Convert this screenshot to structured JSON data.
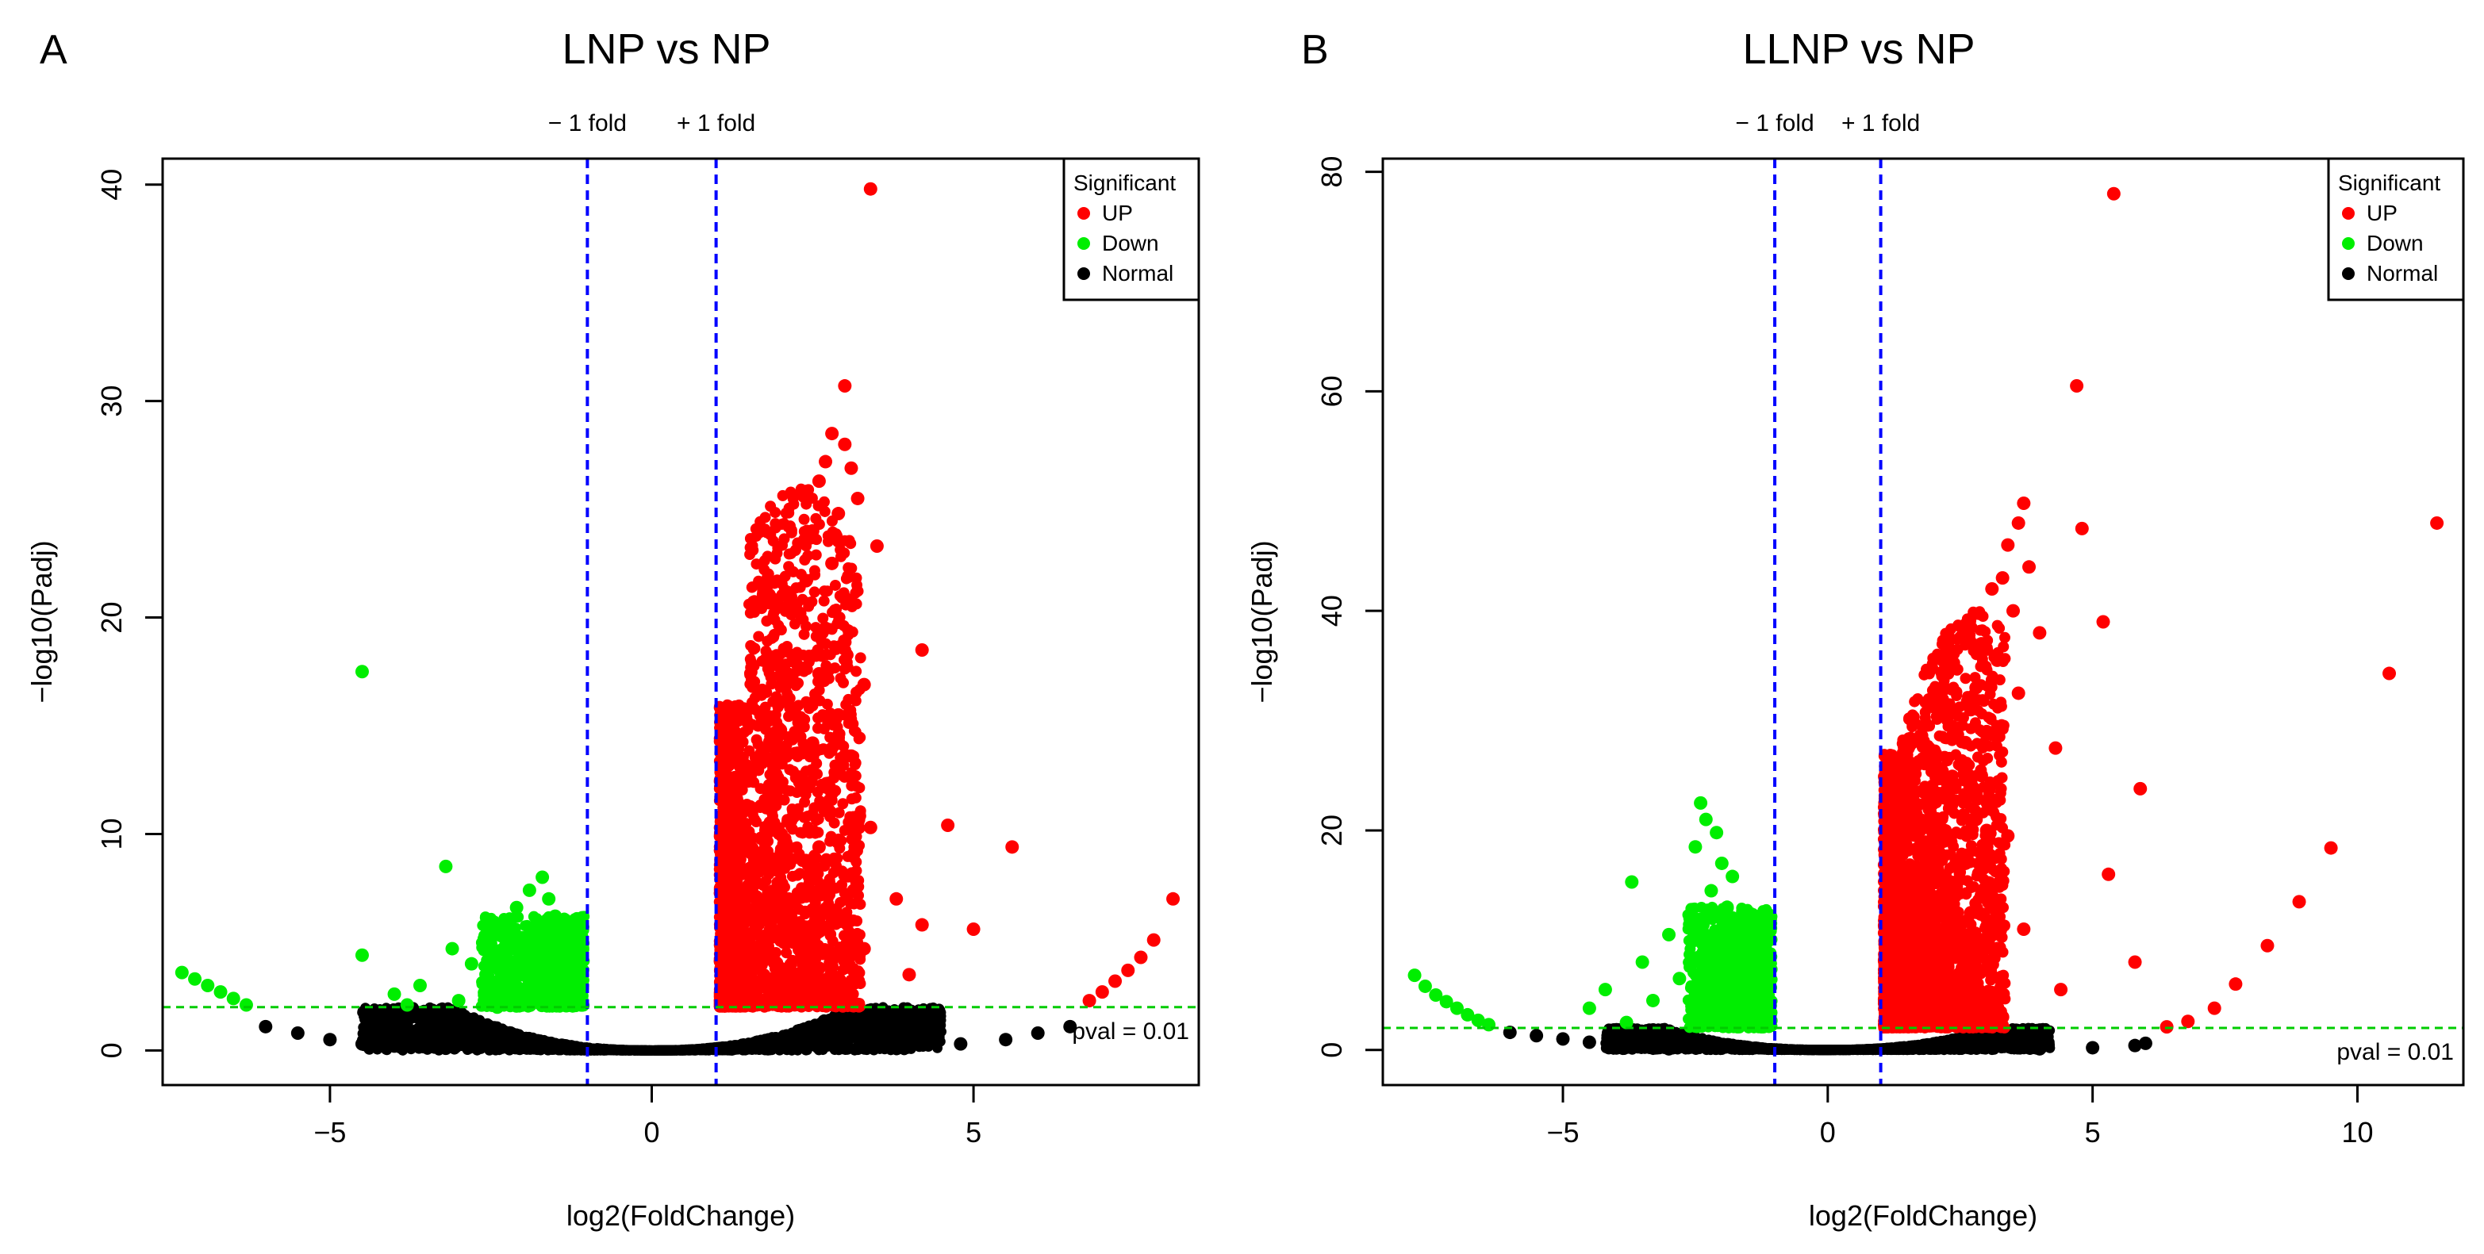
{
  "panels": [
    {
      "letter": "A",
      "legend_title": "Significant",
      "vline_labels": [
        "− 1 fold",
        "+ 1 fold"
      ],
      "hline_label": "pval = 0.01"
    },
    {
      "letter": "B",
      "legend_title": "Significant",
      "vline_labels": [
        "− 1 fold",
        "+ 1 fold"
      ],
      "hline_label": "pval = 0.01"
    }
  ],
  "colors": {
    "up": "#ff0000",
    "down": "#00ee00",
    "normal": "#000000",
    "vline": "#0000ff",
    "hline": "#00cc00"
  },
  "chart_data": [
    {
      "type": "scatter",
      "title": "LNP vs NP",
      "xlabel": "log2(FoldChange)",
      "ylabel": "−log10(Padj)",
      "xlim": [
        -7.6,
        8.5
      ],
      "ylim": [
        -1.6,
        41.2
      ],
      "xticks": [
        -5,
        0,
        5
      ],
      "yticks": [
        0,
        10,
        20,
        30,
        40
      ],
      "xtick_labels": [
        "−5",
        "0",
        "5"
      ],
      "ytick_labels": [
        "0",
        "10",
        "20",
        "30",
        "40"
      ],
      "fold_lines": [
        -1,
        1
      ],
      "pval_line": 2,
      "legend": {
        "position": "top-right",
        "entries": [
          "UP",
          "Down",
          "Normal"
        ]
      },
      "series": [
        {
          "name": "UP",
          "color": "#ff0000",
          "points": [
            [
              3.4,
              39.8
            ],
            [
              3.0,
              30.7
            ],
            [
              2.8,
              28.5
            ],
            [
              3.0,
              28.0
            ],
            [
              2.7,
              27.2
            ],
            [
              3.1,
              26.9
            ],
            [
              2.6,
              26.3
            ],
            [
              3.2,
              25.5
            ],
            [
              2.9,
              24.8
            ],
            [
              2.5,
              24.0
            ],
            [
              3.5,
              23.3
            ],
            [
              2.8,
              22.5
            ],
            [
              2.4,
              21.7
            ],
            [
              3.0,
              20.9
            ],
            [
              2.3,
              20.2
            ],
            [
              2.7,
              19.5
            ],
            [
              4.2,
              18.5
            ],
            [
              2.2,
              18.0
            ],
            [
              2.6,
              17.4
            ],
            [
              3.3,
              16.9
            ],
            [
              2.1,
              16.2
            ],
            [
              2.9,
              15.5
            ],
            [
              2.0,
              14.8
            ],
            [
              2.5,
              14.2
            ],
            [
              3.1,
              13.6
            ],
            [
              1.9,
              13.0
            ],
            [
              2.3,
              12.4
            ],
            [
              2.8,
              11.9
            ],
            [
              1.8,
              11.3
            ],
            [
              2.2,
              10.8
            ],
            [
              3.4,
              10.3
            ],
            [
              4.6,
              10.4
            ],
            [
              1.7,
              9.8
            ],
            [
              2.6,
              9.4
            ],
            [
              5.6,
              9.4
            ],
            [
              1.6,
              8.8
            ],
            [
              2.0,
              8.4
            ],
            [
              3.0,
              8.1
            ],
            [
              1.5,
              7.6
            ],
            [
              2.4,
              7.2
            ],
            [
              3.8,
              7.0
            ],
            [
              1.4,
              6.6
            ],
            [
              1.9,
              6.2
            ],
            [
              2.8,
              5.9
            ],
            [
              4.2,
              5.8
            ],
            [
              5.0,
              5.6
            ],
            [
              1.3,
              5.3
            ],
            [
              2.2,
              5.0
            ],
            [
              3.3,
              4.7
            ],
            [
              1.2,
              4.4
            ],
            [
              1.7,
              4.1
            ],
            [
              2.6,
              3.8
            ],
            [
              4.0,
              3.5
            ],
            [
              1.1,
              3.2
            ],
            [
              1.5,
              2.9
            ],
            [
              2.0,
              2.6
            ],
            [
              3.0,
              2.4
            ],
            [
              1.2,
              2.2
            ],
            [
              1.8,
              2.1
            ],
            [
              6.8,
              2.3
            ],
            [
              7.0,
              2.7
            ],
            [
              7.2,
              3.2
            ],
            [
              7.4,
              3.7
            ],
            [
              7.6,
              4.3
            ],
            [
              7.8,
              5.1
            ],
            [
              8.1,
              7.0
            ],
            [
              2.3,
              3.5
            ],
            [
              2.5,
              6.5
            ],
            [
              2.1,
              9.0
            ],
            [
              1.8,
              4.8
            ]
          ]
        },
        {
          "name": "Down",
          "color": "#00ee00",
          "points": [
            [
              -4.5,
              17.5
            ],
            [
              -3.2,
              8.5
            ],
            [
              -1.7,
              8.0
            ],
            [
              -1.9,
              7.4
            ],
            [
              -1.6,
              7.0
            ],
            [
              -2.1,
              6.6
            ],
            [
              -1.5,
              6.2
            ],
            [
              -2.3,
              5.8
            ],
            [
              -1.8,
              5.5
            ],
            [
              -2.6,
              5.0
            ],
            [
              -1.4,
              4.8
            ],
            [
              -3.1,
              4.7
            ],
            [
              -2.0,
              4.4
            ],
            [
              -4.5,
              4.4
            ],
            [
              -2.8,
              4.0
            ],
            [
              -1.3,
              3.8
            ],
            [
              -2.2,
              3.5
            ],
            [
              -1.6,
              3.2
            ],
            [
              -3.6,
              3.0
            ],
            [
              -2.5,
              2.8
            ],
            [
              -1.2,
              2.6
            ],
            [
              -1.9,
              2.4
            ],
            [
              -3.0,
              2.3
            ],
            [
              -1.1,
              2.1
            ],
            [
              -2.4,
              2.0
            ],
            [
              -7.3,
              3.6
            ],
            [
              -7.1,
              3.3
            ],
            [
              -6.9,
              3.0
            ],
            [
              -6.7,
              2.7
            ],
            [
              -6.5,
              2.4
            ],
            [
              -6.3,
              2.1
            ],
            [
              -4.0,
              2.6
            ],
            [
              -3.8,
              2.1
            ]
          ]
        },
        {
          "name": "Normal",
          "color": "#000000",
          "points": [
            [
              -6.0,
              1.1
            ],
            [
              -5.5,
              0.8
            ],
            [
              -5.0,
              0.5
            ],
            [
              -4.5,
              0.3
            ],
            [
              -4.0,
              0.2
            ],
            [
              -3.2,
              0.1
            ],
            [
              3.2,
              0.1
            ],
            [
              4.0,
              0.2
            ],
            [
              4.8,
              0.3
            ],
            [
              5.5,
              0.5
            ],
            [
              6.0,
              0.8
            ],
            [
              6.5,
              1.1
            ]
          ]
        }
      ]
    },
    {
      "type": "scatter",
      "title": "LLNP vs NP",
      "xlabel": "log2(FoldChange)",
      "ylabel": "−log10(Padj)",
      "xlim": [
        -8.4,
        12.0
      ],
      "ylim": [
        -3.2,
        81.2
      ],
      "xticks": [
        -5,
        0,
        5,
        10
      ],
      "yticks": [
        0,
        20,
        40,
        60,
        80
      ],
      "xtick_labels": [
        "−5",
        "0",
        "5",
        "10"
      ],
      "ytick_labels": [
        "0",
        "20",
        "40",
        "60",
        "80"
      ],
      "fold_lines": [
        -1,
        1
      ],
      "pval_line": 2,
      "legend": {
        "position": "top-right",
        "entries": [
          "UP",
          "Down",
          "Normal"
        ]
      },
      "series": [
        {
          "name": "UP",
          "color": "#ff0000",
          "points": [
            [
              5.4,
              78.0
            ],
            [
              4.7,
              60.5
            ],
            [
              4.8,
              47.5
            ],
            [
              11.5,
              48.0
            ],
            [
              3.7,
              49.8
            ],
            [
              3.6,
              48.0
            ],
            [
              3.4,
              46.0
            ],
            [
              3.8,
              44.0
            ],
            [
              3.3,
              43.0
            ],
            [
              5.2,
              39.0
            ],
            [
              3.1,
              42.0
            ],
            [
              3.5,
              40.0
            ],
            [
              4.0,
              38.0
            ],
            [
              10.6,
              34.3
            ],
            [
              2.9,
              37.0
            ],
            [
              3.2,
              35.5
            ],
            [
              2.8,
              33.0
            ],
            [
              3.6,
              32.5
            ],
            [
              2.7,
              31.0
            ],
            [
              3.0,
              29.0
            ],
            [
              2.6,
              28.0
            ],
            [
              4.3,
              27.5
            ],
            [
              2.5,
              26.0
            ],
            [
              2.9,
              25.0
            ],
            [
              2.4,
              24.0
            ],
            [
              5.9,
              23.8
            ],
            [
              2.3,
              22.0
            ],
            [
              2.8,
              21.0
            ],
            [
              2.2,
              20.0
            ],
            [
              3.4,
              19.5
            ],
            [
              9.5,
              18.4
            ],
            [
              2.1,
              18.0
            ],
            [
              2.6,
              17.0
            ],
            [
              2.0,
              16.0
            ],
            [
              5.3,
              16.0
            ],
            [
              1.9,
              14.5
            ],
            [
              3.1,
              14.0
            ],
            [
              1.8,
              13.0
            ],
            [
              8.9,
              13.5
            ],
            [
              2.4,
              12.0
            ],
            [
              1.7,
              11.0
            ],
            [
              3.7,
              11.0
            ],
            [
              1.6,
              9.5
            ],
            [
              8.3,
              9.5
            ],
            [
              2.1,
              9.0
            ],
            [
              5.8,
              8.0
            ],
            [
              1.5,
              8.0
            ],
            [
              2.8,
              7.5
            ],
            [
              1.4,
              6.5
            ],
            [
              7.7,
              6.0
            ],
            [
              1.9,
              5.5
            ],
            [
              4.4,
              5.5
            ],
            [
              1.3,
              5.0
            ],
            [
              2.5,
              4.5
            ],
            [
              1.2,
              3.8
            ],
            [
              7.3,
              3.8
            ],
            [
              1.7,
              3.2
            ],
            [
              3.3,
              3.0
            ],
            [
              1.1,
              2.7
            ],
            [
              6.8,
              2.6
            ],
            [
              2.2,
              2.3
            ],
            [
              6.4,
              2.1
            ],
            [
              3.0,
              20.0
            ],
            [
              2.7,
              12.5
            ]
          ]
        },
        {
          "name": "Down",
          "color": "#00ee00",
          "points": [
            [
              -2.4,
              22.5
            ],
            [
              -2.3,
              21.0
            ],
            [
              -2.1,
              19.8
            ],
            [
              -2.5,
              18.5
            ],
            [
              -2.0,
              17.0
            ],
            [
              -1.8,
              15.8
            ],
            [
              -3.7,
              15.3
            ],
            [
              -2.2,
              14.5
            ],
            [
              -1.9,
              13.0
            ],
            [
              -2.6,
              12.0
            ],
            [
              -1.7,
              11.0
            ],
            [
              -3.0,
              10.5
            ],
            [
              -2.0,
              9.5
            ],
            [
              -1.5,
              9.0
            ],
            [
              -3.5,
              8.0
            ],
            [
              -2.3,
              7.8
            ],
            [
              -1.6,
              7.0
            ],
            [
              -2.8,
              6.5
            ],
            [
              -1.3,
              6.0
            ],
            [
              -4.2,
              5.5
            ],
            [
              -2.0,
              5.0
            ],
            [
              -1.2,
              4.5
            ],
            [
              -3.3,
              4.5
            ],
            [
              -2.5,
              4.0
            ],
            [
              -1.5,
              3.5
            ],
            [
              -4.5,
              3.8
            ],
            [
              -1.1,
              3.0
            ],
            [
              -2.0,
              2.8
            ],
            [
              -3.8,
              2.5
            ],
            [
              -1.4,
              2.3
            ],
            [
              -7.8,
              6.8
            ],
            [
              -7.6,
              5.8
            ],
            [
              -7.4,
              5.0
            ],
            [
              -7.2,
              4.4
            ],
            [
              -7.0,
              3.8
            ],
            [
              -6.8,
              3.2
            ],
            [
              -6.6,
              2.7
            ],
            [
              -6.4,
              2.3
            ]
          ]
        },
        {
          "name": "Normal",
          "color": "#000000",
          "points": [
            [
              -6.0,
              1.6
            ],
            [
              -5.5,
              1.3
            ],
            [
              -5.0,
              1.0
            ],
            [
              -4.5,
              0.7
            ],
            [
              -4.0,
              0.4
            ],
            [
              -3.0,
              0.1
            ],
            [
              4.0,
              0.1
            ],
            [
              5.0,
              0.2
            ],
            [
              5.8,
              0.4
            ],
            [
              6.0,
              0.6
            ]
          ]
        }
      ]
    }
  ]
}
